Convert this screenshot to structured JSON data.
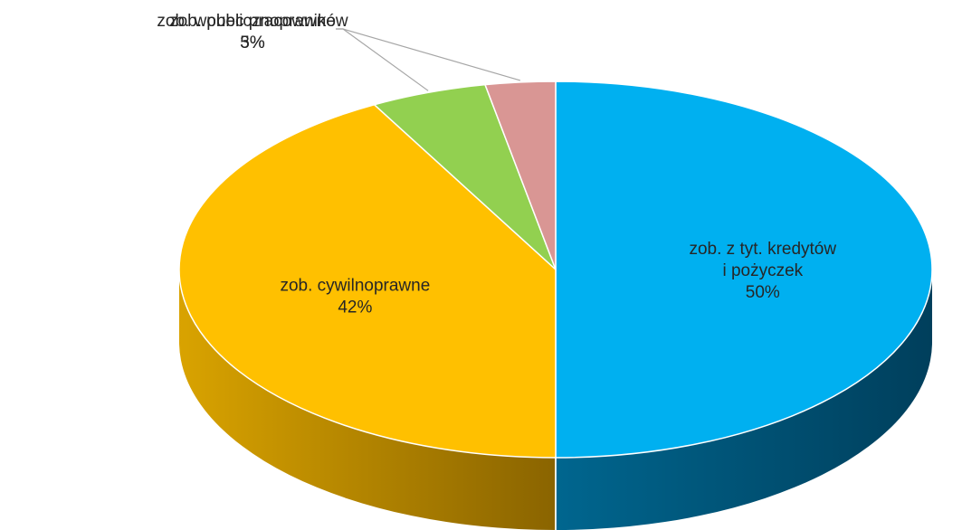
{
  "chart_data": {
    "type": "pie",
    "style": "3d",
    "start_angle_deg": 0,
    "direction": "clockwise",
    "legend": "none",
    "title": "",
    "slices": [
      {
        "label": [
          "zob. z tyt. kredytów",
          "i pożyczek"
        ],
        "percent_label": "50%",
        "value": 50,
        "color": "#00B0F0",
        "side_dark": "#003F5C",
        "side_light": "#00668F"
      },
      {
        "label": [
          "zob. cywilnoprawne"
        ],
        "percent_label": "42%",
        "value": 42,
        "color": "#FFC000",
        "side_dark": "#8A6400",
        "side_light": "#D9A300"
      },
      {
        "label": [
          "zob. publicznoprawne"
        ],
        "percent_label": "5%",
        "value": 5,
        "color": "#92D050",
        "side_dark": "#4E7A28",
        "side_light": "#7CB044"
      },
      {
        "label": [
          "zob. wobec pracowników"
        ],
        "percent_label": "3%",
        "value": 3,
        "color": "#D99694",
        "side_dark": "#8C5250",
        "side_light": "#C07A78"
      }
    ]
  }
}
